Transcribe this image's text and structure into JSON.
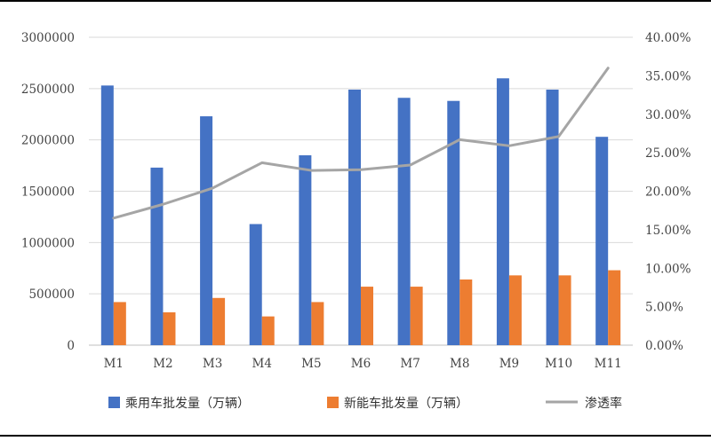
{
  "chart_data": {
    "type": "bar",
    "categories": [
      "M1",
      "M2",
      "M3",
      "M4",
      "M5",
      "M6",
      "M7",
      "M8",
      "M9",
      "M10",
      "M11"
    ],
    "series": [
      {
        "name": "乘用车批发量（万辆）",
        "type": "bar",
        "axis": "left",
        "color": "#4472C4",
        "values": [
          2530000,
          1730000,
          2230000,
          1180000,
          1850000,
          2490000,
          2410000,
          2380000,
          2600000,
          2490000,
          2030000
        ]
      },
      {
        "name": "新能车批发量（万辆）",
        "type": "bar",
        "axis": "left",
        "color": "#ED7D31",
        "values": [
          420000,
          320000,
          460000,
          280000,
          420000,
          570000,
          570000,
          640000,
          680000,
          680000,
          730000
        ]
      },
      {
        "name": "渗透率",
        "type": "line",
        "axis": "right",
        "color": "#A5A5A5",
        "values": [
          0.165,
          0.183,
          0.204,
          0.237,
          0.227,
          0.228,
          0.234,
          0.267,
          0.259,
          0.271,
          0.36
        ]
      }
    ],
    "y_left": {
      "min": 0,
      "max": 3000000,
      "ticks": [
        "0",
        "500000",
        "1000000",
        "1500000",
        "2000000",
        "2500000",
        "3000000"
      ]
    },
    "y_right": {
      "min": 0,
      "max": 0.4,
      "ticks": [
        "0.00%",
        "5.00%",
        "10.00%",
        "15.00%",
        "20.00%",
        "25.00%",
        "30.00%",
        "35.00%",
        "40.00%"
      ]
    },
    "grid": true,
    "legend_position": "bottom"
  }
}
